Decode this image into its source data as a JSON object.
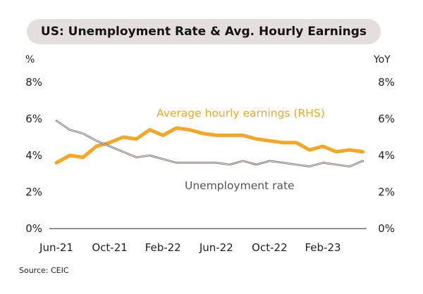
{
  "chart_data": {
    "type": "line",
    "title": "US: Unemployment Rate & Avg. Hourly Earnings",
    "left_unit": "%",
    "right_unit": "YoY",
    "x": [
      "Jun-21",
      "Jul-21",
      "Aug-21",
      "Sep-21",
      "Oct-21",
      "Nov-21",
      "Dec-21",
      "Jan-22",
      "Feb-22",
      "Mar-22",
      "Apr-22",
      "May-22",
      "Jun-22",
      "Jul-22",
      "Aug-22",
      "Sep-22",
      "Oct-22",
      "Nov-22",
      "Dec-22",
      "Jan-23",
      "Feb-23",
      "Mar-23",
      "Apr-23",
      "May-23"
    ],
    "x_tick_labels": [
      "Jun-21",
      "Oct-21",
      "Feb-22",
      "Jun-22",
      "Oct-22",
      "Feb-23"
    ],
    "y_left_ticks": [
      "0%",
      "2%",
      "4%",
      "6%",
      "8%"
    ],
    "y_right_ticks": [
      "0%",
      "2%",
      "4%",
      "6%",
      "8%"
    ],
    "ylim_left": [
      0,
      8
    ],
    "ylim_right": [
      0,
      8
    ],
    "grid": false,
    "series": [
      {
        "name": "Average hourly earnings (RHS)",
        "axis": "right",
        "color": "#f5a623",
        "values": [
          3.6,
          4.0,
          3.9,
          4.5,
          4.7,
          5.0,
          4.9,
          5.4,
          5.1,
          5.5,
          5.4,
          5.2,
          5.1,
          5.1,
          5.1,
          4.9,
          4.8,
          4.7,
          4.7,
          4.3,
          4.5,
          4.2,
          4.3,
          4.2
        ]
      },
      {
        "name": "Unemployment rate",
        "axis": "left",
        "color": "#6e5a5a",
        "values": [
          5.9,
          5.4,
          5.2,
          4.8,
          4.5,
          4.2,
          3.9,
          4.0,
          3.8,
          3.6,
          3.6,
          3.6,
          3.6,
          3.5,
          3.7,
          3.5,
          3.7,
          3.6,
          3.5,
          3.4,
          3.6,
          3.5,
          3.4,
          3.7
        ]
      }
    ],
    "source": "Source: CEIC"
  }
}
